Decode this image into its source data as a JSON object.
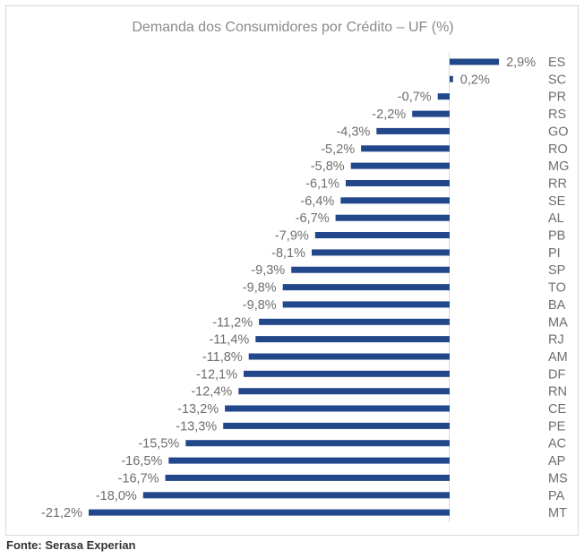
{
  "chart_data": {
    "type": "bar",
    "orientation": "horizontal",
    "title": "Demanda dos Consumidores por Crédito – UF (%)",
    "xlabel": "",
    "ylabel": "",
    "categories": [
      "ES",
      "SC",
      "PR",
      "RS",
      "GO",
      "RO",
      "MG",
      "RR",
      "SE",
      "AL",
      "PB",
      "PI",
      "SP",
      "TO",
      "BA",
      "MA",
      "RJ",
      "AM",
      "DF",
      "RN",
      "CE",
      "PE",
      "AC",
      "AP",
      "MS",
      "PA",
      "MT"
    ],
    "values": [
      2.9,
      0.2,
      -0.7,
      -2.2,
      -4.3,
      -5.2,
      -5.8,
      -6.1,
      -6.4,
      -6.7,
      -7.9,
      -8.1,
      -9.3,
      -9.8,
      -9.8,
      -11.2,
      -11.4,
      -11.8,
      -12.1,
      -12.4,
      -13.2,
      -13.3,
      -15.5,
      -16.5,
      -16.7,
      -18.0,
      -21.2
    ],
    "labels": [
      "2,9%",
      "0,2%",
      "-0,7%",
      "-2,2%",
      "-4,3%",
      "-5,2%",
      "-5,8%",
      "-6,1%",
      "-6,4%",
      "-6,7%",
      "-7,9%",
      "-8,1%",
      "-9,3%",
      "-9,8%",
      "-9,8%",
      "-11,2%",
      "-11,4%",
      "-11,8%",
      "-12,1%",
      "-12,4%",
      "-13,2%",
      "-13,3%",
      "-15,5%",
      "-16,5%",
      "-16,7%",
      "-18,0%",
      "-21,2%"
    ],
    "colors": {
      "bar": "#22478a"
    }
  },
  "footer": {
    "source": "Fonte: Serasa Experian"
  }
}
